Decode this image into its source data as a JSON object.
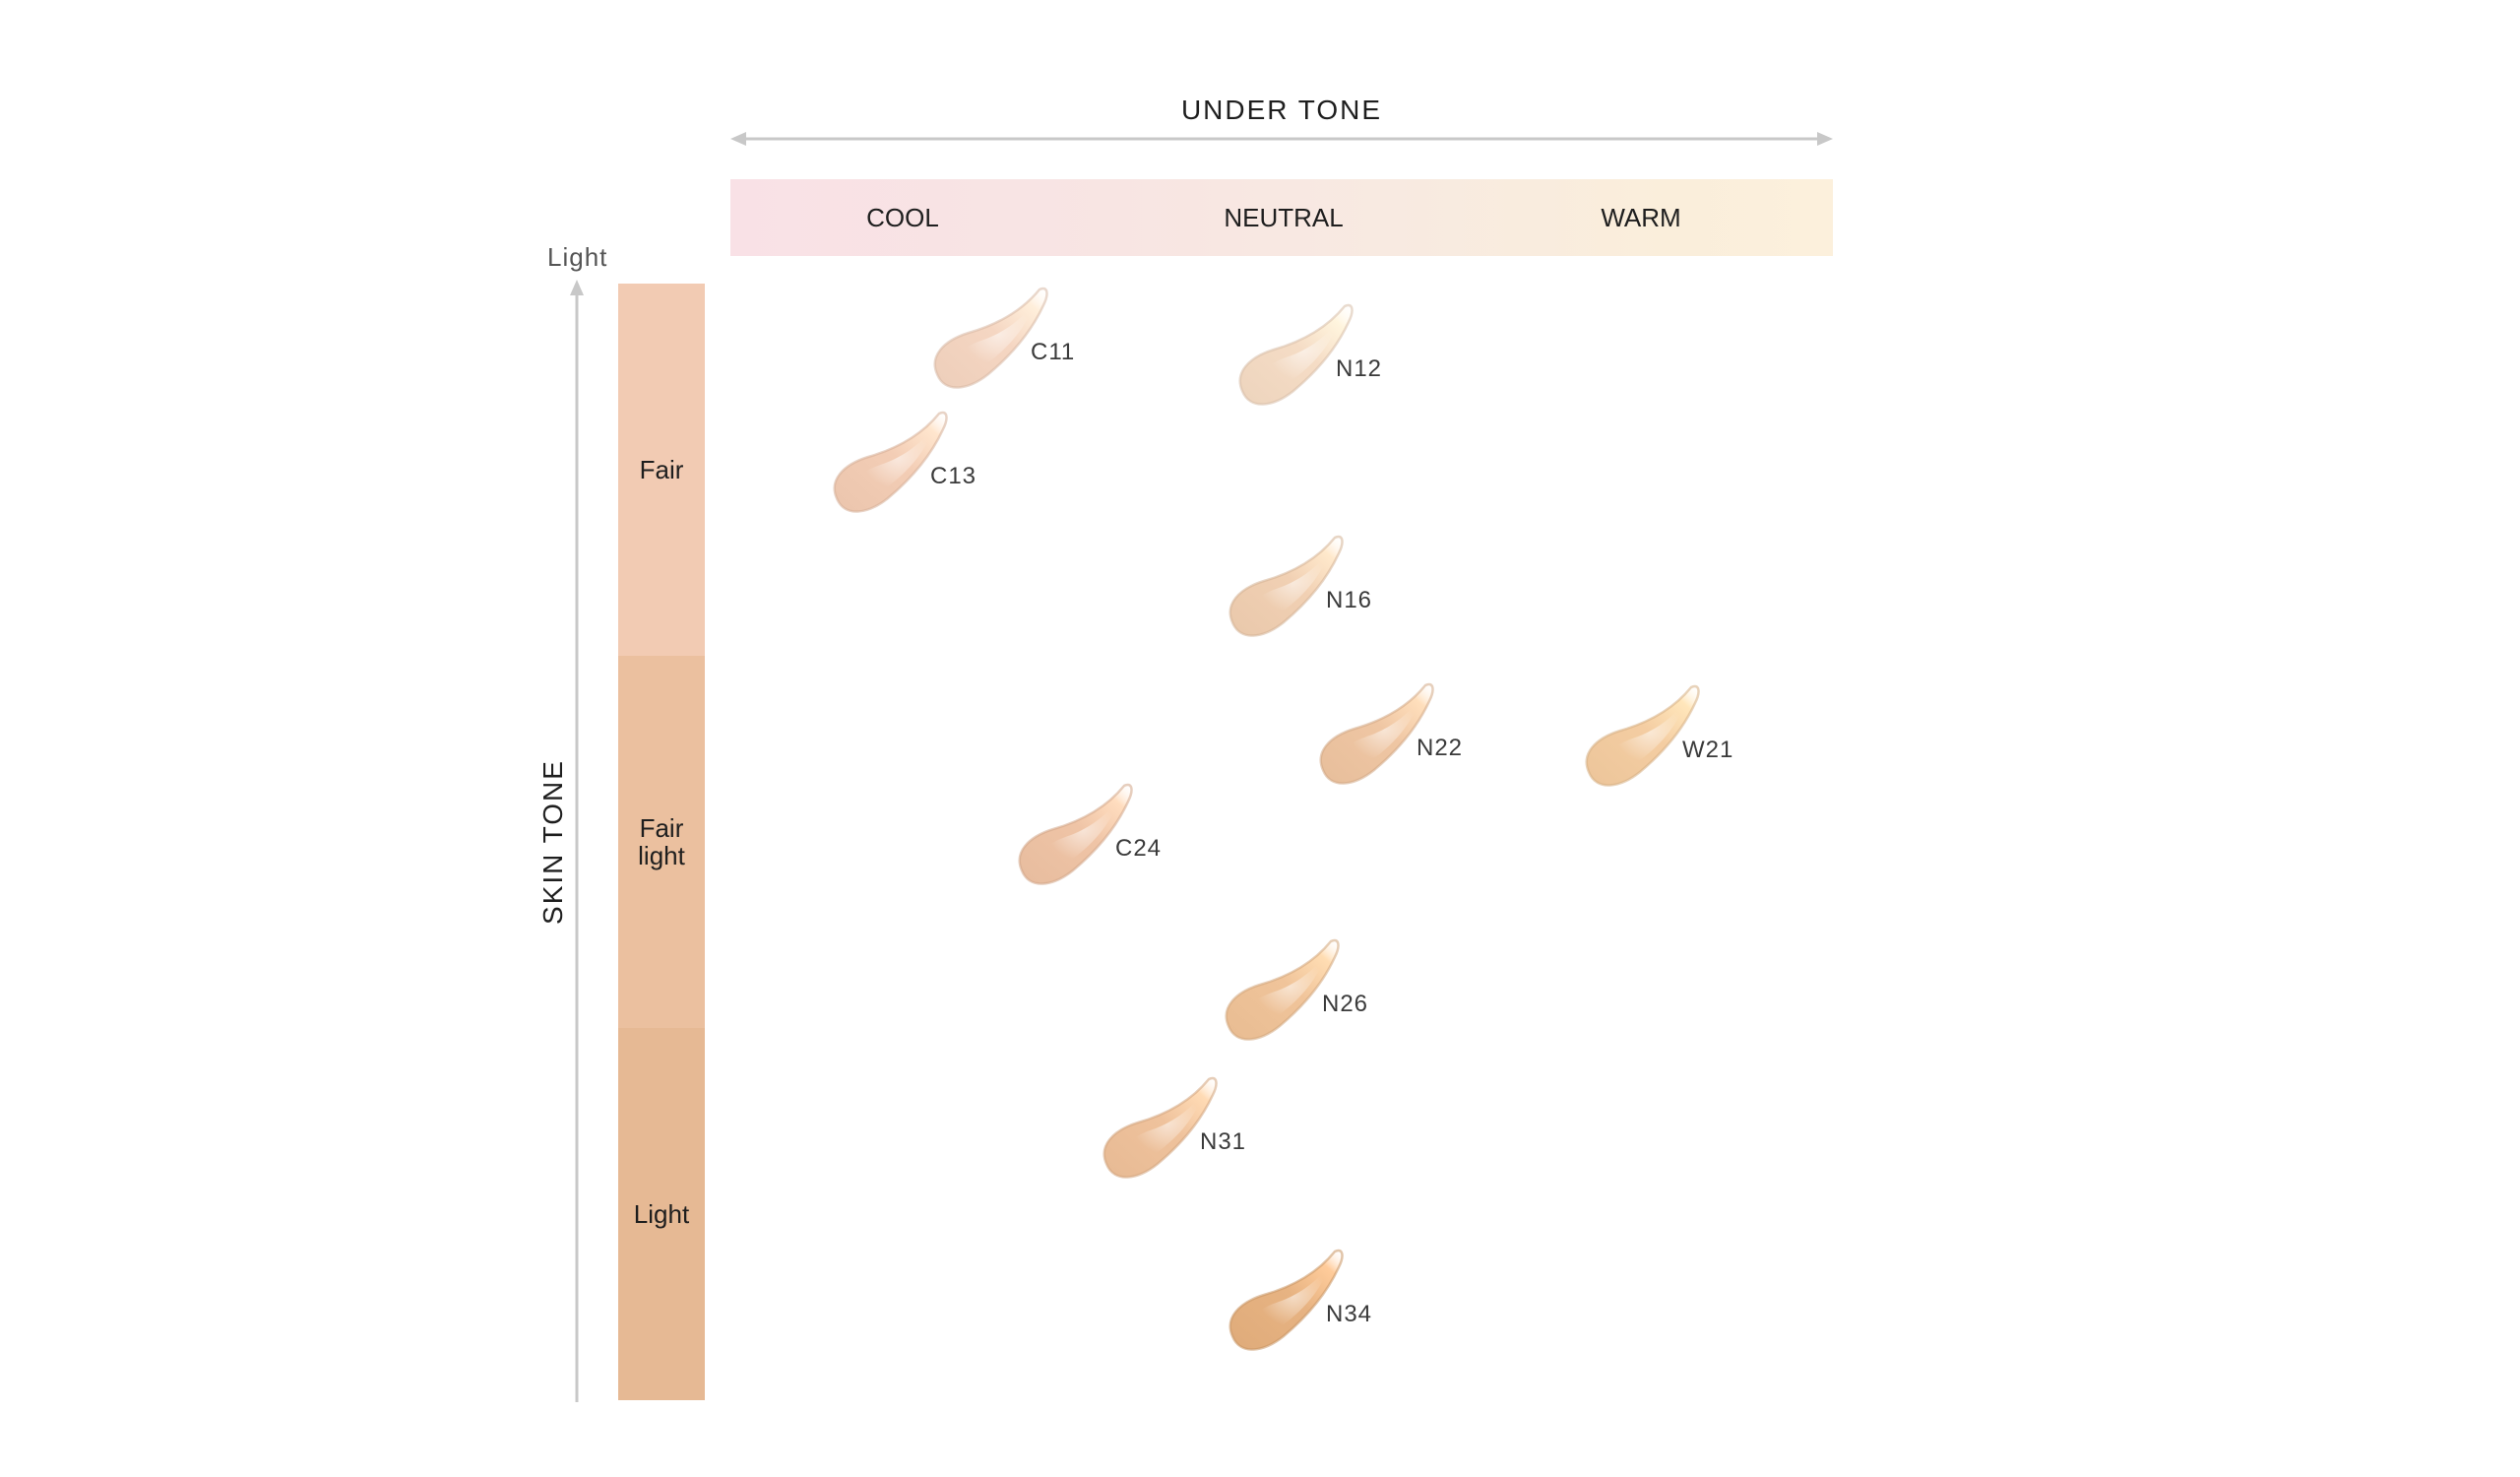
{
  "under_tone": {
    "title": "UNDER TONE",
    "columns": [
      {
        "label": "COOL"
      },
      {
        "label": "NEUTRAL"
      },
      {
        "label": "WARM"
      }
    ]
  },
  "skin_tone": {
    "title": "SKIN TONE",
    "top_label": "Light",
    "bands": [
      {
        "label": "Fair",
        "color": "#f2cbb3"
      },
      {
        "label": "Fair\nlight",
        "color": "#ebc09f"
      },
      {
        "label": "Light",
        "color": "#e6b994"
      }
    ]
  },
  "shades": [
    {
      "code": "C11",
      "color": "#f5d6c2"
    },
    {
      "code": "N12",
      "color": "#f5dcc5"
    },
    {
      "code": "C13",
      "color": "#f3cdb5"
    },
    {
      "code": "N16",
      "color": "#f1d0b3"
    },
    {
      "code": "N22",
      "color": "#efc6a3"
    },
    {
      "code": "W21",
      "color": "#f4cda2"
    },
    {
      "code": "C24",
      "color": "#efc4a6"
    },
    {
      "code": "N26",
      "color": "#f0c49a"
    },
    {
      "code": "N31",
      "color": "#efc29c"
    },
    {
      "code": "N34",
      "color": "#e7b382"
    }
  ]
}
